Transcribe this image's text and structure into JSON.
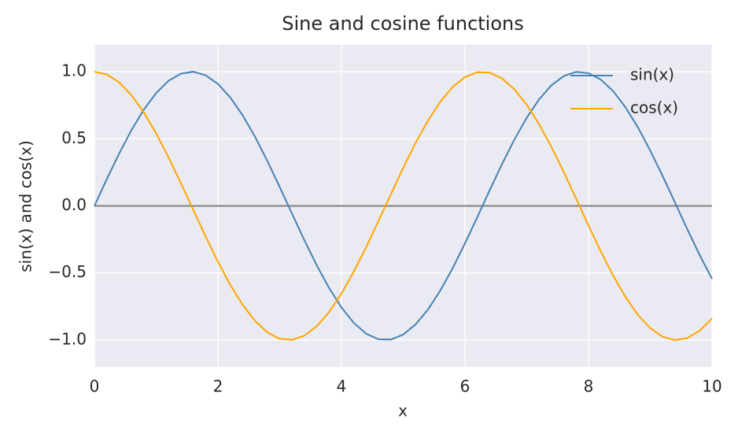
{
  "chart_data": {
    "type": "line",
    "title": "Sine and cosine functions",
    "xlabel": "x",
    "ylabel": "sin(x) and cos(x)",
    "x": [
      0,
      0.2,
      0.4,
      0.6,
      0.8,
      1,
      1.2,
      1.4,
      1.6,
      1.8,
      2,
      2.2,
      2.4,
      2.6,
      2.8,
      3,
      3.2,
      3.4,
      3.6,
      3.8,
      4,
      4.2,
      4.4,
      4.6,
      4.8,
      5,
      5.2,
      5.4,
      5.6,
      5.8,
      6,
      6.2,
      6.4,
      6.6,
      6.8,
      7,
      7.2,
      7.4,
      7.6,
      7.8,
      8,
      8.2,
      8.4,
      8.6,
      8.8,
      9,
      9.2,
      9.4,
      9.6,
      9.8,
      10
    ],
    "series": [
      {
        "name": "sin(x)",
        "color": "#4682b4",
        "values": [
          0,
          0.199,
          0.389,
          0.565,
          0.717,
          0.841,
          0.932,
          0.985,
          1.0,
          0.974,
          0.909,
          0.808,
          0.675,
          0.516,
          0.335,
          0.141,
          -0.058,
          -0.256,
          -0.443,
          -0.612,
          -0.757,
          -0.872,
          -0.952,
          -0.994,
          -0.996,
          -0.959,
          -0.883,
          -0.773,
          -0.631,
          -0.465,
          -0.279,
          -0.083,
          0.117,
          0.312,
          0.494,
          0.657,
          0.794,
          0.899,
          0.968,
          0.999,
          0.989,
          0.941,
          0.855,
          0.734,
          0.585,
          0.412,
          0.223,
          0.025,
          -0.174,
          -0.366,
          -0.544
        ]
      },
      {
        "name": "cos(x)",
        "color": "#ffa500",
        "values": [
          1,
          0.98,
          0.921,
          0.825,
          0.697,
          0.54,
          0.362,
          0.17,
          -0.029,
          -0.227,
          -0.416,
          -0.589,
          -0.737,
          -0.857,
          -0.942,
          -0.99,
          -0.998,
          -0.967,
          -0.897,
          -0.791,
          -0.654,
          -0.49,
          -0.307,
          -0.112,
          0.087,
          0.284,
          0.469,
          0.635,
          0.776,
          0.886,
          0.96,
          0.997,
          0.993,
          0.95,
          0.869,
          0.754,
          0.608,
          0.439,
          0.252,
          0.054,
          -0.146,
          -0.34,
          -0.52,
          -0.68,
          -0.812,
          -0.911,
          -0.975,
          -1.0,
          -0.985,
          -0.93,
          -0.839
        ]
      }
    ],
    "hline": 0,
    "hline_color": "#808080",
    "xlim": [
      0,
      10
    ],
    "xticks": [
      0,
      2,
      4,
      6,
      8,
      10
    ],
    "ylim": [
      -1.2,
      1.2
    ],
    "yticks": [
      {
        "value": -1,
        "label": "−1.0"
      },
      {
        "value": -0.5,
        "label": "−0.5"
      },
      {
        "value": 0,
        "label": "0.0"
      },
      0.5,
      {
        "value": 1,
        "label": "1.0"
      }
    ],
    "grid": true,
    "legend": "upper right"
  }
}
